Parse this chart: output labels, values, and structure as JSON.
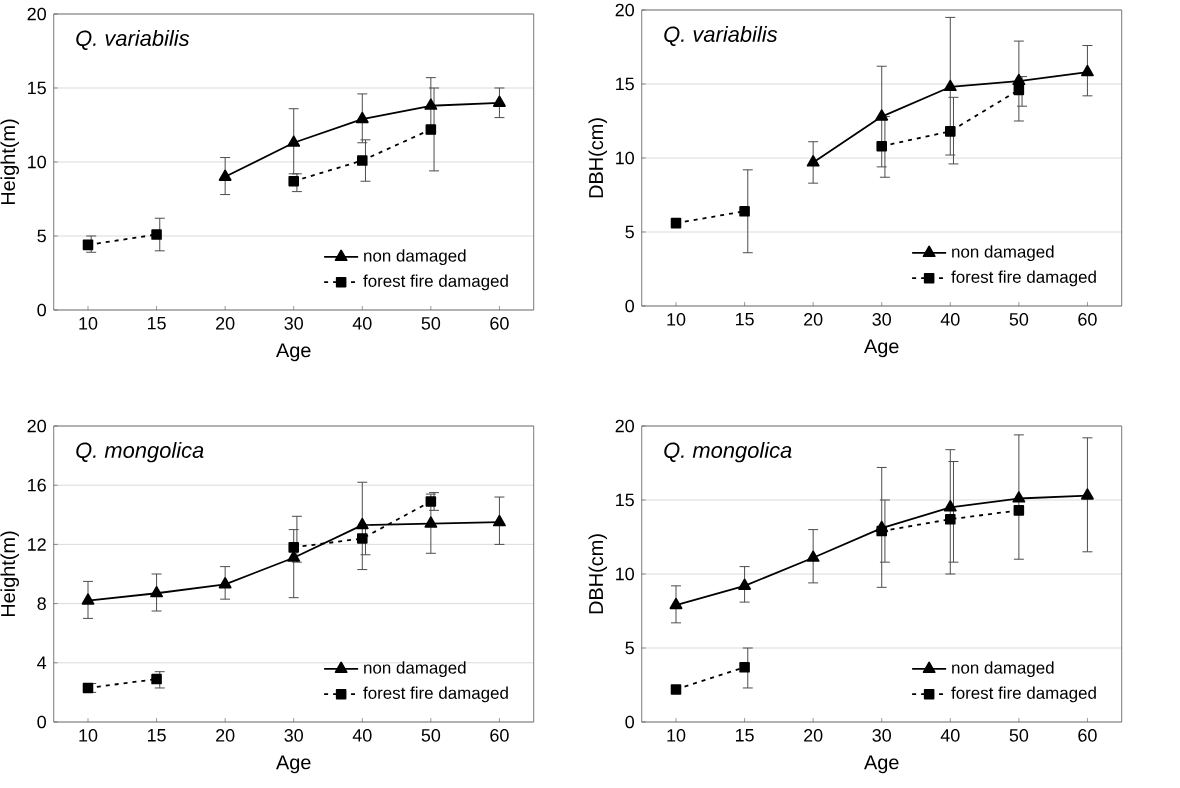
{
  "chart_data": [
    {
      "type": "line",
      "title": "Q. variabilis",
      "xlabel": "Age",
      "ylabel": "Height(m)",
      "categories": [
        "10",
        "15",
        "20",
        "30",
        "40",
        "50",
        "60"
      ],
      "ylim": [
        0,
        20
      ],
      "yticks": [
        0,
        5,
        10,
        15,
        20
      ],
      "grid": "y",
      "legend": "bottom right",
      "series": [
        {
          "name": "non damaged",
          "color": "#000000",
          "marker": "triangle",
          "line_style": "solid",
          "values": [
            null,
            null,
            9.0,
            11.3,
            12.9,
            13.8,
            14.0
          ],
          "errors": [
            null,
            null,
            [
              7.8,
              10.3
            ],
            [
              9.2,
              13.6
            ],
            [
              11.3,
              14.6
            ],
            [
              11.9,
              15.7
            ],
            [
              13.0,
              15.0
            ]
          ]
        },
        {
          "name": "forest fire damaged",
          "color": "#000000",
          "marker": "square",
          "line_style": "dotted",
          "values": [
            4.4,
            5.1,
            null,
            8.7,
            10.1,
            12.2,
            null
          ],
          "errors": [
            [
              3.9,
              5.0
            ],
            [
              4.0,
              6.2
            ],
            null,
            [
              8.0,
              9.2
            ],
            [
              8.7,
              11.5
            ],
            [
              9.4,
              15.0
            ],
            null
          ]
        }
      ]
    },
    {
      "type": "line",
      "title": "Q. variabilis",
      "xlabel": "Age",
      "ylabel": "DBH(cm)",
      "categories": [
        "10",
        "15",
        "20",
        "30",
        "40",
        "50",
        "60"
      ],
      "ylim": [
        0,
        20
      ],
      "yticks": [
        0,
        5,
        10,
        15,
        20
      ],
      "grid": "y",
      "legend": "bottom right",
      "series": [
        {
          "name": "non damaged",
          "color": "#000000",
          "marker": "triangle",
          "line_style": "solid",
          "values": [
            null,
            null,
            9.7,
            12.8,
            14.8,
            15.2,
            15.8
          ],
          "errors": [
            null,
            null,
            [
              8.3,
              11.1
            ],
            [
              9.4,
              16.2
            ],
            [
              10.2,
              19.5
            ],
            [
              12.5,
              17.9
            ],
            [
              14.2,
              17.6
            ]
          ]
        },
        {
          "name": "forest fire damaged",
          "color": "#000000",
          "marker": "square",
          "line_style": "dotted",
          "values": [
            5.6,
            6.4,
            null,
            10.8,
            11.8,
            14.6,
            null
          ],
          "errors": [
            null,
            [
              3.6,
              9.2
            ],
            null,
            [
              8.7,
              12.8
            ],
            [
              9.6,
              14.1
            ],
            [
              13.5,
              15.5
            ],
            null
          ]
        }
      ]
    },
    {
      "type": "line",
      "title": "Q. mongolica",
      "xlabel": "Age",
      "ylabel": "Height(m)",
      "categories": [
        "10",
        "15",
        "20",
        "30",
        "40",
        "50",
        "60"
      ],
      "ylim": [
        0,
        20
      ],
      "yticks": [
        0,
        4,
        8,
        12,
        16,
        20
      ],
      "grid": "y",
      "legend": "bottom right",
      "series": [
        {
          "name": "non damaged",
          "color": "#000000",
          "marker": "triangle",
          "line_style": "solid",
          "values": [
            8.2,
            8.7,
            9.3,
            11.1,
            13.3,
            13.4,
            13.5
          ],
          "errors": [
            [
              7.0,
              9.5
            ],
            [
              7.5,
              10.0
            ],
            [
              8.3,
              10.5
            ],
            [
              8.4,
              13.0
            ],
            [
              10.3,
              16.2
            ],
            [
              11.4,
              15.4
            ],
            [
              12.0,
              15.2
            ]
          ]
        },
        {
          "name": "forest fire damaged",
          "color": "#000000",
          "marker": "square",
          "line_style": "dotted",
          "values": [
            2.3,
            2.9,
            null,
            11.8,
            12.4,
            14.9,
            null
          ],
          "errors": [
            [
              2.0,
              2.6
            ],
            [
              2.3,
              3.4
            ],
            null,
            [
              10.8,
              13.9
            ],
            [
              11.3,
              13.3
            ],
            [
              14.3,
              15.5
            ],
            null
          ]
        }
      ]
    },
    {
      "type": "line",
      "title": "Q. mongolica",
      "xlabel": "Age",
      "ylabel": "DBH(cm)",
      "categories": [
        "10",
        "15",
        "20",
        "30",
        "40",
        "50",
        "60"
      ],
      "ylim": [
        0,
        20
      ],
      "yticks": [
        0,
        5,
        10,
        15,
        20
      ],
      "grid": "y",
      "legend": "bottom right",
      "series": [
        {
          "name": "non damaged",
          "color": "#000000",
          "marker": "triangle",
          "line_style": "solid",
          "values": [
            7.9,
            9.2,
            11.1,
            13.1,
            14.5,
            15.1,
            15.3
          ],
          "errors": [
            [
              6.7,
              9.2
            ],
            [
              8.1,
              10.5
            ],
            [
              9.4,
              13.0
            ],
            [
              9.1,
              17.2
            ],
            [
              10.0,
              18.4
            ],
            [
              11.0,
              19.4
            ],
            [
              11.5,
              19.2
            ]
          ]
        },
        {
          "name": "forest fire damaged",
          "color": "#000000",
          "marker": "square",
          "line_style": "dotted",
          "values": [
            2.2,
            3.7,
            null,
            12.9,
            13.7,
            14.3,
            null
          ],
          "errors": [
            null,
            [
              2.3,
              5.0
            ],
            null,
            [
              10.8,
              15.0
            ],
            [
              10.8,
              17.6
            ],
            null,
            null
          ]
        }
      ]
    }
  ]
}
